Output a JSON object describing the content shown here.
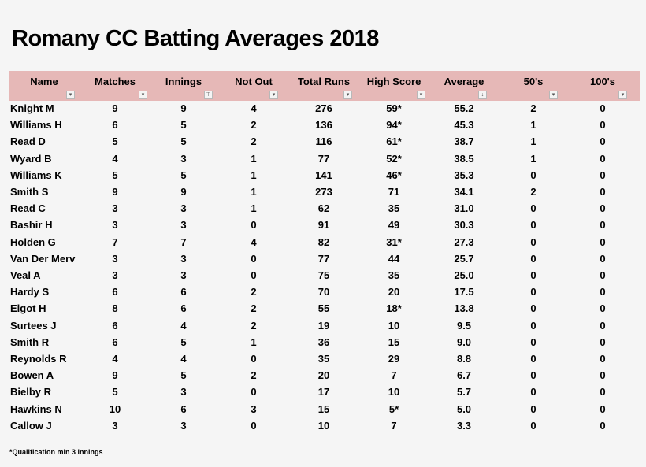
{
  "title": "Romany CC Batting Averages 2018",
  "headers": [
    "Name",
    "Matches",
    "Innings",
    "Not Out",
    "Total Runs",
    "High Score",
    "Average",
    "50's",
    "100's"
  ],
  "filter_icons": [
    "dropdown-icon",
    "dropdown-icon",
    "filter-applied-icon",
    "dropdown-icon",
    "dropdown-icon",
    "dropdown-icon",
    "sort-filter-icon",
    "dropdown-icon",
    "dropdown-icon"
  ],
  "colors": {
    "header_bg": "#e6b8b7",
    "background": "#f5f5f5"
  },
  "rows": [
    [
      "Knight M",
      "9",
      "9",
      "4",
      "276",
      "59*",
      "55.2",
      "2",
      "0"
    ],
    [
      "Williams H",
      "6",
      "5",
      "2",
      "136",
      "94*",
      "45.3",
      "1",
      "0"
    ],
    [
      "Read D",
      "5",
      "5",
      "2",
      "116",
      "61*",
      "38.7",
      "1",
      "0"
    ],
    [
      "Wyard B",
      "4",
      "3",
      "1",
      "77",
      "52*",
      "38.5",
      "1",
      "0"
    ],
    [
      "Williams K",
      "5",
      "5",
      "1",
      "141",
      "46*",
      "35.3",
      "0",
      "0"
    ],
    [
      "Smith S",
      "9",
      "9",
      "1",
      "273",
      "71",
      "34.1",
      "2",
      "0"
    ],
    [
      "Read C",
      "3",
      "3",
      "1",
      "62",
      "35",
      "31.0",
      "0",
      "0"
    ],
    [
      "Bashir H",
      "3",
      "3",
      "0",
      "91",
      "49",
      "30.3",
      "0",
      "0"
    ],
    [
      "Holden G",
      "7",
      "7",
      "4",
      "82",
      "31*",
      "27.3",
      "0",
      "0"
    ],
    [
      "Van Der Merv",
      "3",
      "3",
      "0",
      "77",
      "44",
      "25.7",
      "0",
      "0"
    ],
    [
      "Veal A",
      "3",
      "3",
      "0",
      "75",
      "35",
      "25.0",
      "0",
      "0"
    ],
    [
      "Hardy S",
      "6",
      "6",
      "2",
      "70",
      "20",
      "17.5",
      "0",
      "0"
    ],
    [
      "Elgot H",
      "8",
      "6",
      "2",
      "55",
      "18*",
      "13.8",
      "0",
      "0"
    ],
    [
      "Surtees J",
      "6",
      "4",
      "2",
      "19",
      "10",
      "9.5",
      "0",
      "0"
    ],
    [
      "Smith R",
      "6",
      "5",
      "1",
      "36",
      "15",
      "9.0",
      "0",
      "0"
    ],
    [
      "Reynolds R",
      "4",
      "4",
      "0",
      "35",
      "29",
      "8.8",
      "0",
      "0"
    ],
    [
      "Bowen A",
      "9",
      "5",
      "2",
      "20",
      "7",
      "6.7",
      "0",
      "0"
    ],
    [
      "Bielby R",
      "5",
      "3",
      "0",
      "17",
      "10",
      "5.7",
      "0",
      "0"
    ],
    [
      "Hawkins N",
      "10",
      "6",
      "3",
      "15",
      "5*",
      "5.0",
      "0",
      "0"
    ],
    [
      "Callow J",
      "3",
      "3",
      "0",
      "10",
      "7",
      "3.3",
      "0",
      "0"
    ]
  ],
  "footnote": "*Qualification min 3 innings"
}
